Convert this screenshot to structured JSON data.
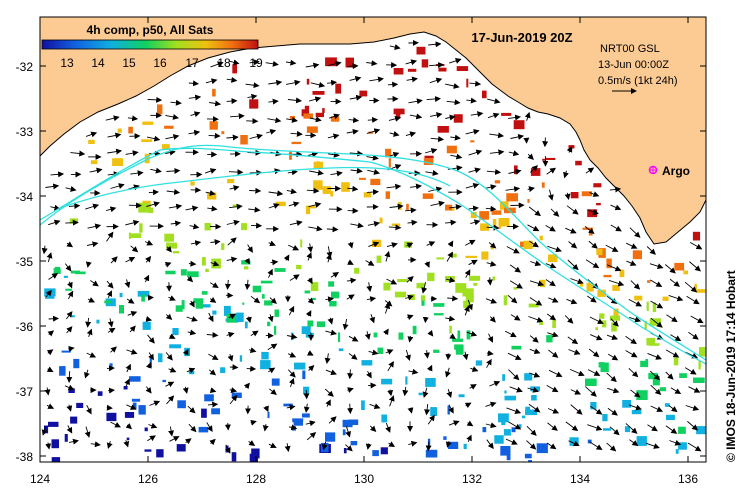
{
  "map": {
    "title": "17-Jun-2019 20Z",
    "colorbar": {
      "label": "4h comp, p50, All Sats",
      "ticks": [
        "13",
        "14",
        "15",
        "16",
        "17",
        "18",
        "19"
      ],
      "colors": [
        "#1010a0",
        "#1060e0",
        "#10b0e0",
        "#10d060",
        "#a0e020",
        "#f0c010",
        "#f07010",
        "#c01010"
      ]
    },
    "info": {
      "line1": "NRT00 GSL",
      "line2": "13-Jun 00:00Z",
      "line3": "0.5m/s (1kt 24h)"
    },
    "argo_label": "Argo",
    "x_ticks": [
      "124",
      "126",
      "128",
      "130",
      "132",
      "134",
      "136"
    ],
    "y_ticks": [
      "-32",
      "-33",
      "-34",
      "-35",
      "-36",
      "-37",
      "-38"
    ],
    "credit": "© IMOS 18-Jun-2019 17:14 Hobart",
    "colors": {
      "land": "#fccb94",
      "sea": "#ffffff",
      "contour": "#30e0e0",
      "argo": "#ff00ff"
    }
  }
}
